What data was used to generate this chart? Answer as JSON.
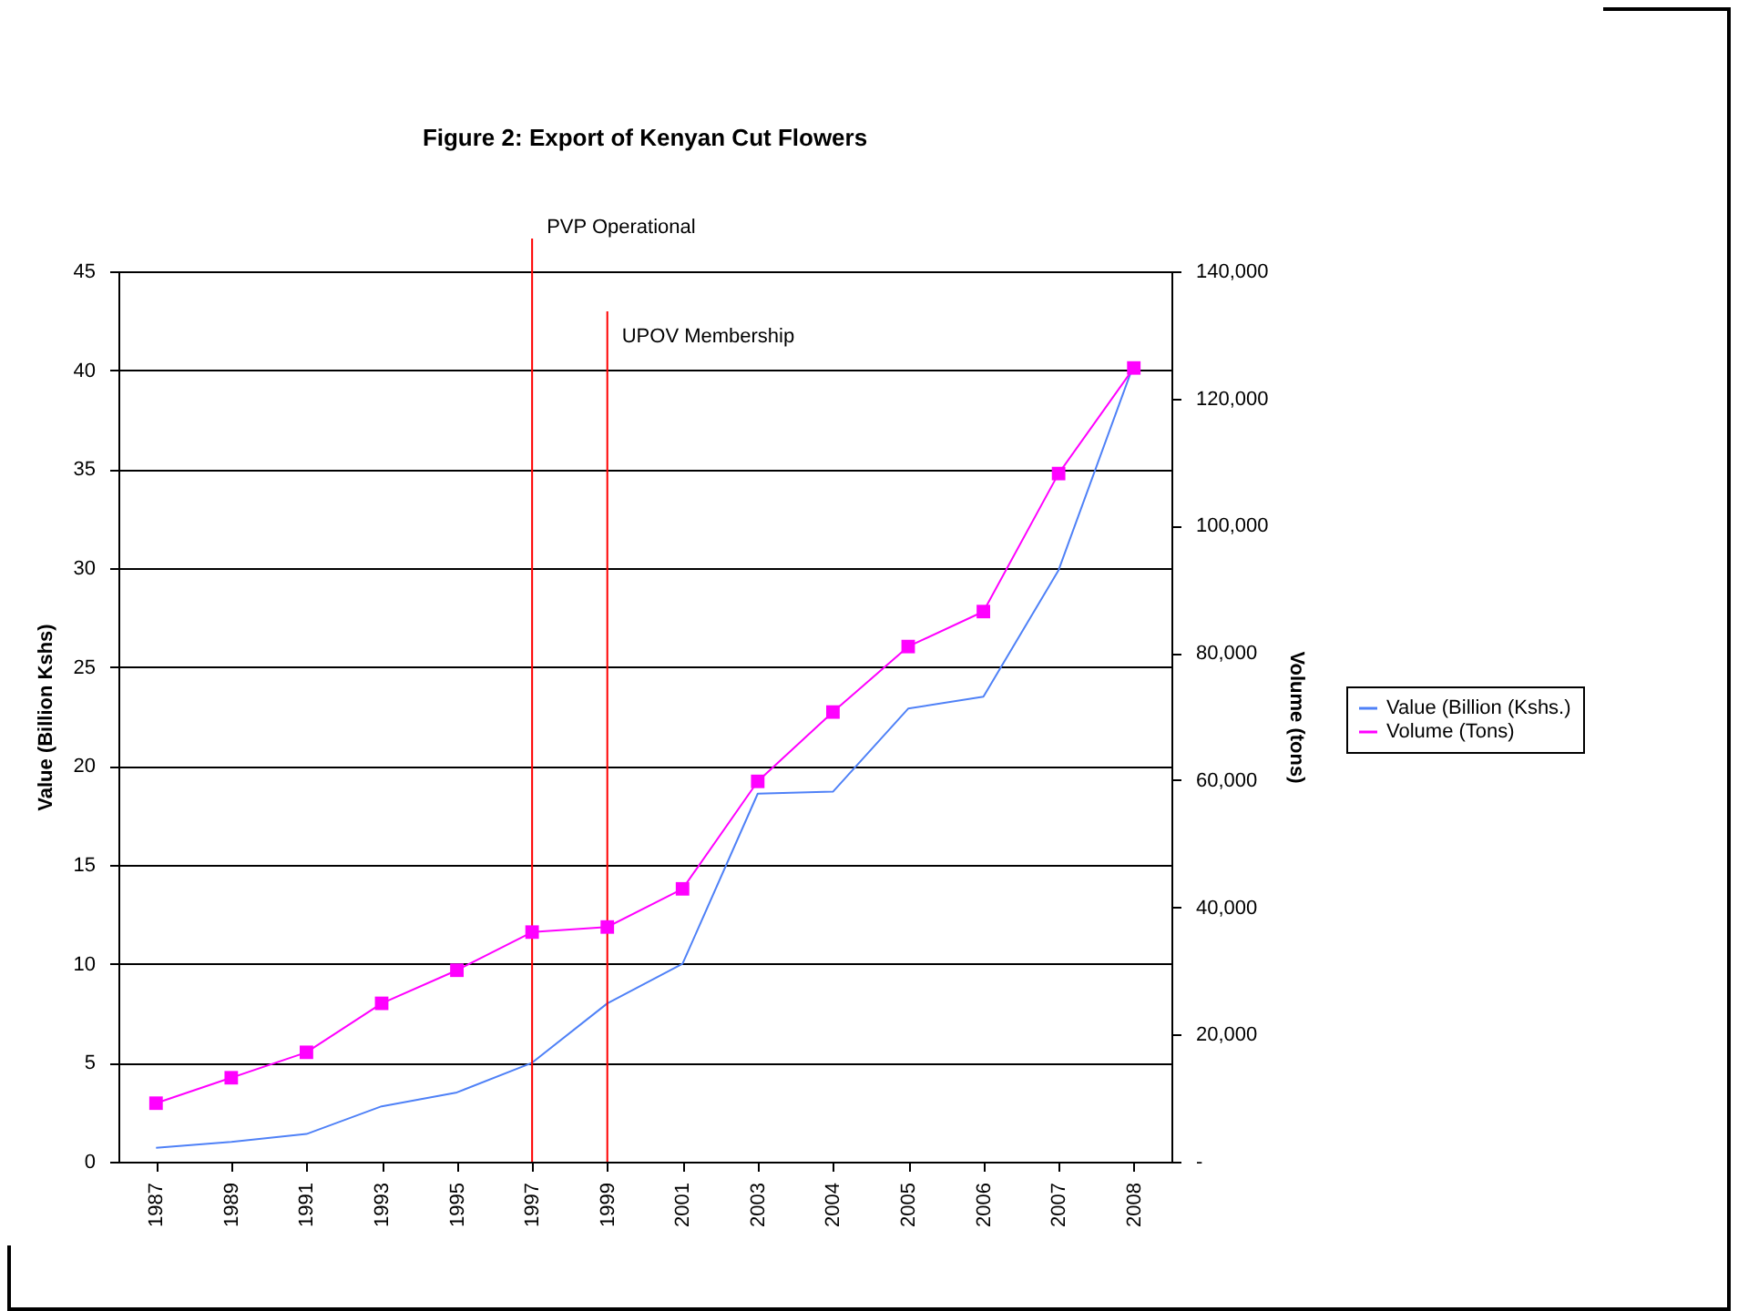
{
  "chart_data": {
    "type": "line",
    "title": "Figure 2: Export of Kenyan Cut Flowers",
    "ylabel": "Value (Billion Kshs)",
    "y2label": "Volume (tons)",
    "categories": [
      "1987",
      "1989",
      "1991",
      "1993",
      "1995",
      "1997",
      "1999",
      "2001",
      "2003",
      "2004",
      "2005",
      "2006",
      "2007",
      "2008"
    ],
    "series": [
      {
        "name": "Value (Billion (Kshs.)",
        "color": "#4f81f7",
        "marker": "none",
        "values": [
          0.7,
          1.0,
          1.4,
          2.8,
          3.5,
          5.0,
          8.0,
          10.0,
          18.6,
          18.7,
          22.9,
          23.5,
          29.9,
          40.3
        ]
      },
      {
        "name": "Volume (Tons)",
        "color": "#ff00ff",
        "marker": "square",
        "axis": "y2",
        "values": [
          9200,
          13200,
          17200,
          24900,
          30100,
          36100,
          36900,
          42900,
          59800,
          70700,
          81000,
          86500,
          108200,
          124800
        ]
      }
    ],
    "ylim": [
      0,
      45
    ],
    "yticks": [
      0,
      5,
      10,
      15,
      20,
      25,
      30,
      35,
      40,
      45
    ],
    "y2lim": [
      0,
      140000
    ],
    "y2ticks": [
      {
        "value": 0,
        "label": "-"
      },
      {
        "value": 20000,
        "label": "20,000"
      },
      {
        "value": 40000,
        "label": "40,000"
      },
      {
        "value": 60000,
        "label": "60,000"
      },
      {
        "value": 80000,
        "label": "80,000"
      },
      {
        "value": 100000,
        "label": "100,000"
      },
      {
        "value": 120000,
        "label": "120,000"
      },
      {
        "value": 140000,
        "label": "140,000"
      }
    ],
    "ref_lines": [
      {
        "axis": "x",
        "value": "1997",
        "label": "PVP Operational",
        "color": "#ff0000"
      },
      {
        "axis": "x",
        "value": "1999",
        "label": "UPOV Membership",
        "color": "#ff0000"
      }
    ],
    "grid": "y",
    "legend": "right"
  }
}
